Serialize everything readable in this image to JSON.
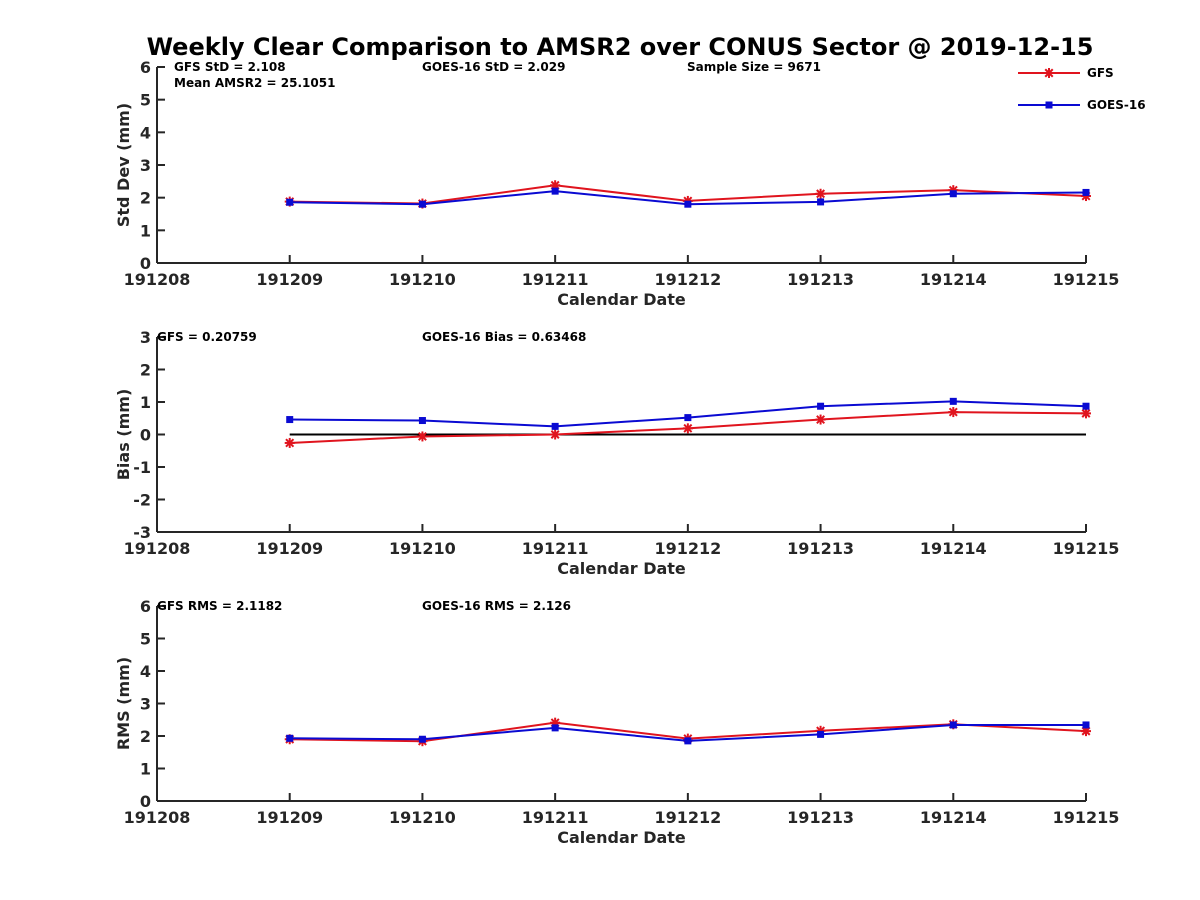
{
  "title": "Weekly Clear Comparison to AMSR2 over CONUS Sector @ 2019-12-15",
  "legend": {
    "placement": "top-right",
    "entries": [
      {
        "name": "GFS",
        "color": "#e0141e",
        "marker": "asterisk"
      },
      {
        "name": "GOES-16",
        "color": "#0a0ad2",
        "marker": "square"
      }
    ]
  },
  "colors": {
    "gfs": "#e0141e",
    "goes": "#0a0ad2",
    "zero_line": "#000000",
    "axis": "#262626"
  },
  "chart_data": [
    {
      "type": "line",
      "title": "",
      "xlabel": "Calendar Date",
      "ylabel": "Std Dev (mm)",
      "categories": [
        "191208",
        "191209",
        "191210",
        "191211",
        "191212",
        "191213",
        "191214",
        "191215"
      ],
      "ylim": [
        0,
        6
      ],
      "yticks": [
        0,
        1,
        2,
        3,
        4,
        5,
        6
      ],
      "grid": false,
      "annotations": [
        "GFS StD = 2.108",
        "GOES-16 StD = 2.029",
        "Sample Size = 9671",
        "Mean AMSR2 = 25.1051"
      ],
      "series": [
        {
          "name": "GFS",
          "x": [
            1,
            2,
            3,
            4,
            5,
            6,
            7
          ],
          "values": [
            1.88,
            1.82,
            2.38,
            1.9,
            2.12,
            2.23,
            2.05
          ]
        },
        {
          "name": "GOES-16",
          "x": [
            1,
            2,
            3,
            4,
            5,
            6,
            7
          ],
          "values": [
            1.86,
            1.8,
            2.2,
            1.8,
            1.87,
            2.12,
            2.16
          ]
        }
      ]
    },
    {
      "type": "line",
      "title": "",
      "xlabel": "Calendar Date",
      "ylabel": "Bias (mm)",
      "categories": [
        "191208",
        "191209",
        "191210",
        "191211",
        "191212",
        "191213",
        "191214",
        "191215"
      ],
      "ylim": [
        -3,
        3
      ],
      "yticks": [
        -3,
        -2,
        -1,
        0,
        1,
        2,
        3
      ],
      "grid": false,
      "zero_line": [
        1,
        7
      ],
      "annotations": [
        "GFS = 0.20759",
        "GOES-16 Bias  = 0.63468"
      ],
      "series": [
        {
          "name": "GFS",
          "x": [
            1,
            2,
            3,
            4,
            5,
            6,
            7
          ],
          "values": [
            -0.26,
            -0.06,
            0.0,
            0.19,
            0.46,
            0.69,
            0.65
          ]
        },
        {
          "name": "GOES-16",
          "x": [
            1,
            2,
            3,
            4,
            5,
            6,
            7
          ],
          "values": [
            0.46,
            0.43,
            0.25,
            0.52,
            0.87,
            1.02,
            0.87
          ]
        }
      ]
    },
    {
      "type": "line",
      "title": "",
      "xlabel": "Calendar Date",
      "ylabel": "RMS (mm)",
      "categories": [
        "191208",
        "191209",
        "191210",
        "191211",
        "191212",
        "191213",
        "191214",
        "191215"
      ],
      "ylim": [
        0,
        6
      ],
      "yticks": [
        0,
        1,
        2,
        3,
        4,
        5,
        6
      ],
      "grid": false,
      "annotations": [
        "GFS RMS = 2.1182",
        "GOES-16 RMS = 2.126"
      ],
      "series": [
        {
          "name": "GFS",
          "x": [
            1,
            2,
            3,
            4,
            5,
            6,
            7
          ],
          "values": [
            1.9,
            1.84,
            2.41,
            1.92,
            2.16,
            2.36,
            2.15
          ]
        },
        {
          "name": "GOES-16",
          "x": [
            1,
            2,
            3,
            4,
            5,
            6,
            7
          ],
          "values": [
            1.93,
            1.9,
            2.25,
            1.85,
            2.05,
            2.34,
            2.34
          ]
        }
      ]
    }
  ]
}
